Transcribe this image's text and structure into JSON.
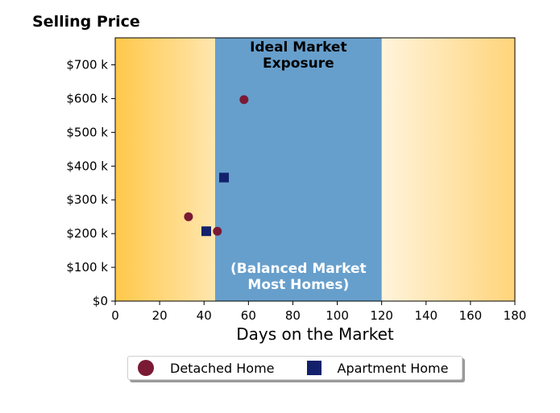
{
  "chart_data": {
    "type": "scatter",
    "title": "",
    "ylabel": "Selling Price",
    "xlabel": "Days on the Market",
    "xlim": [
      0,
      180
    ],
    "ylim": [
      0,
      780000
    ],
    "x_ticks": [
      0,
      20,
      40,
      60,
      80,
      100,
      120,
      140,
      160,
      180
    ],
    "y_ticks": [
      0,
      100000,
      200000,
      300000,
      400000,
      500000,
      600000,
      700000
    ],
    "y_tick_labels": [
      "$0",
      "$100 k",
      "$200 k",
      "$300 k",
      "$400 k",
      "$500 k",
      "$600 k",
      "$700 k"
    ],
    "grid": false,
    "background": "gradient orange at edges fading to white toward center",
    "shaded_region": {
      "x_start": 45,
      "x_end": 120,
      "color": "#679fcc",
      "label_top": [
        "Ideal Market",
        "Exposure"
      ],
      "label_bottom": [
        "(Balanced Market",
        "Most Homes)"
      ]
    },
    "series": [
      {
        "name": "Detached Home",
        "marker": "circle",
        "color": "#7a1a35",
        "points": [
          {
            "x": 33,
            "y": 250000
          },
          {
            "x": 46,
            "y": 207000
          },
          {
            "x": 58,
            "y": 597000
          }
        ]
      },
      {
        "name": "Apartment Home",
        "marker": "square",
        "color": "#13206b",
        "points": [
          {
            "x": 41,
            "y": 207000
          },
          {
            "x": 49,
            "y": 366000
          }
        ]
      }
    ],
    "legend_position": "bottom-center"
  }
}
